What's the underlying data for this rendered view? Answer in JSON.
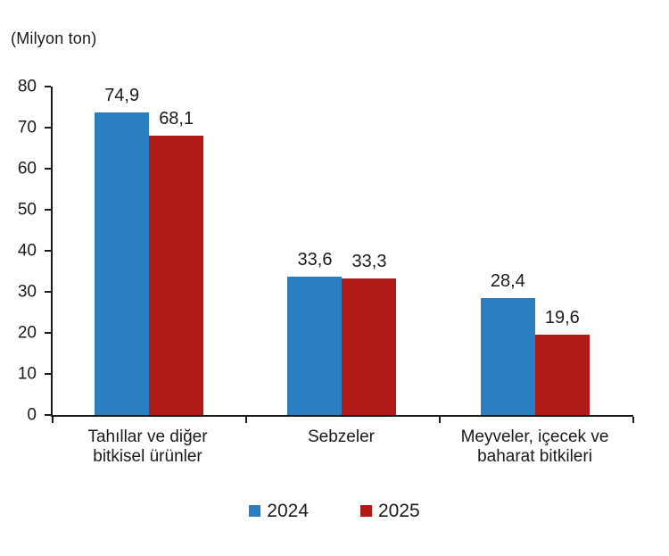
{
  "chart_data": {
    "type": "bar",
    "title": "",
    "unit_label": "(Milyon ton)",
    "xlabel": "",
    "ylabel": "(Milyon ton)",
    "ylim": [
      0,
      80
    ],
    "yticks": [
      0,
      10,
      20,
      30,
      40,
      50,
      60,
      70,
      80
    ],
    "grid": false,
    "legend_position": "bottom",
    "axis_color": "#1a1a1a",
    "categories": [
      "Tahıllar ve diğer\nbitkisel ürünler",
      "Sebzeler",
      "Meyveler, içecek ve\nbaharat bitkileri"
    ],
    "series": [
      {
        "name": "2024",
        "color": "#2A7EC0",
        "values": [
          74.9,
          33.6,
          28.4
        ],
        "value_labels": [
          "74,9",
          "33,6",
          "28,4"
        ]
      },
      {
        "name": "2025",
        "color": "#B11917",
        "values": [
          68.1,
          33.3,
          19.6
        ],
        "value_labels": [
          "68,1",
          "33,3",
          "19,6"
        ]
      }
    ]
  }
}
